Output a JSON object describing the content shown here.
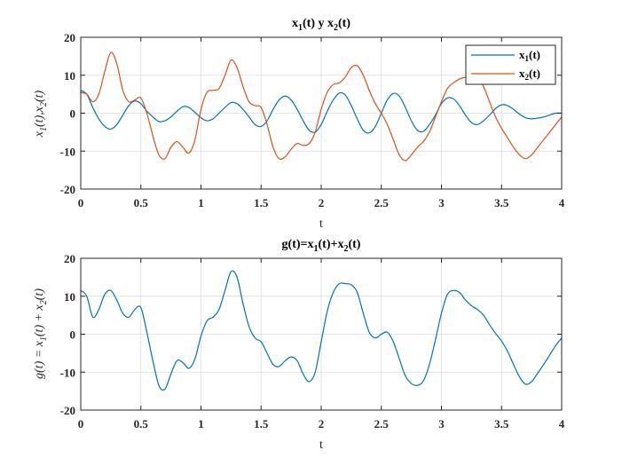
{
  "chart_data": [
    {
      "type": "line",
      "title": "x1(t) y x2(t)",
      "title_parts": {
        "a": "x",
        "a_sub": "1",
        "b": "(t) y x",
        "b_sub": "2",
        "c": "(t)"
      },
      "xlabel": "t",
      "ylabel": "x1(t),x2(t)",
      "ylabel_parts": {
        "a": "x",
        "a_sub": "1",
        "b": "(t),x",
        "b_sub": "2",
        "c": "(t)"
      },
      "xlim": [
        0,
        4
      ],
      "ylim": [
        -20,
        20
      ],
      "xticks": [
        0,
        0.5,
        1,
        1.5,
        2,
        2.5,
        3,
        3.5,
        4
      ],
      "xtick_labels": [
        "0",
        "0.5",
        "1",
        "1.5",
        "2",
        "2.5",
        "3",
        "3.5",
        "4"
      ],
      "yticks": [
        -20,
        -10,
        0,
        10,
        20
      ],
      "ytick_labels": [
        "-20",
        "-10",
        "0",
        "10",
        "20"
      ],
      "grid": true,
      "legend_position": "top-right",
      "series": [
        {
          "name": "x1(t)",
          "name_parts": {
            "a": "x",
            "a_sub": "1",
            "b": "(t)"
          },
          "color": "#0072BD",
          "x": [
            0,
            0.05,
            0.1,
            0.15,
            0.2,
            0.25,
            0.3,
            0.35,
            0.4,
            0.45,
            0.5,
            0.55,
            0.6,
            0.65,
            0.7,
            0.75,
            0.8,
            0.85,
            0.9,
            0.95,
            1.0,
            1.05,
            1.1,
            1.15,
            1.2,
            1.25,
            1.3,
            1.35,
            1.4,
            1.45,
            1.5,
            1.55,
            1.6,
            1.65,
            1.7,
            1.75,
            1.8,
            1.85,
            1.9,
            1.95,
            2.0,
            2.05,
            2.1,
            2.15,
            2.2,
            2.25,
            2.3,
            2.35,
            2.4,
            2.45,
            2.5,
            2.55,
            2.6,
            2.65,
            2.7,
            2.75,
            2.8,
            2.85,
            2.9,
            2.95,
            3.0,
            3.05,
            3.1,
            3.15,
            3.2,
            3.25,
            3.3,
            3.35,
            3.4,
            3.45,
            3.5,
            3.55,
            3.6,
            3.65,
            3.7,
            3.75,
            3.8,
            3.85,
            3.9,
            3.95,
            4.0
          ],
          "y": [
            6,
            5,
            1.5,
            -1.5,
            -3.5,
            -4.2,
            -3,
            -0.5,
            2,
            3.2,
            2.5,
            0.5,
            -1,
            -2.2,
            -2,
            -1,
            0.5,
            1.7,
            1.5,
            0.2,
            -1.2,
            -2,
            -1.5,
            0,
            1.5,
            2.8,
            2.5,
            1,
            -1,
            -3,
            -3.5,
            -2,
            1,
            3.5,
            4.5,
            3.5,
            1,
            -2,
            -4.5,
            -5,
            -3,
            0.5,
            3.5,
            5.3,
            4.8,
            2,
            -1.5,
            -4.5,
            -5.2,
            -3.5,
            0,
            3.5,
            5.2,
            4.5,
            1.5,
            -2,
            -4.5,
            -4.8,
            -3,
            -0.5,
            2.5,
            4,
            3.8,
            2,
            -0.5,
            -2.5,
            -3,
            -2,
            -0.5,
            1.2,
            2.2,
            2,
            1,
            -0.3,
            -1.2,
            -1.5,
            -1.3,
            -1,
            -0.5,
            0,
            0
          ]
        },
        {
          "name": "x2(t)",
          "name_parts": {
            "a": "x",
            "a_sub": "2",
            "b": "(t)"
          },
          "color": "#D95319",
          "x": [
            0,
            0.05,
            0.1,
            0.15,
            0.2,
            0.25,
            0.3,
            0.35,
            0.4,
            0.45,
            0.5,
            0.55,
            0.6,
            0.65,
            0.7,
            0.75,
            0.8,
            0.85,
            0.9,
            0.95,
            1.0,
            1.05,
            1.1,
            1.15,
            1.2,
            1.25,
            1.3,
            1.35,
            1.4,
            1.45,
            1.5,
            1.55,
            1.6,
            1.65,
            1.7,
            1.75,
            1.8,
            1.85,
            1.9,
            1.95,
            2.0,
            2.05,
            2.1,
            2.15,
            2.2,
            2.25,
            2.3,
            2.35,
            2.4,
            2.45,
            2.5,
            2.55,
            2.6,
            2.65,
            2.7,
            2.75,
            2.8,
            2.85,
            2.9,
            2.95,
            3.0,
            3.05,
            3.1,
            3.15,
            3.2,
            3.25,
            3.3,
            3.35,
            3.4,
            3.45,
            3.5,
            3.55,
            3.6,
            3.65,
            3.7,
            3.75,
            3.8,
            3.85,
            3.9,
            3.95,
            4.0
          ],
          "y": [
            5.5,
            5,
            3,
            5,
            11,
            16,
            13,
            6,
            3,
            3.5,
            4,
            0,
            -6,
            -11,
            -12,
            -9,
            -7.5,
            -9,
            -10.5,
            -7,
            1,
            5.5,
            6,
            6.5,
            10,
            14,
            12,
            7,
            3,
            2,
            1.5,
            -3,
            -9,
            -12,
            -11.5,
            -9.5,
            -8,
            -8.5,
            -8,
            -5,
            1,
            5.5,
            7.5,
            8,
            9.5,
            12,
            12.5,
            10,
            6,
            2.5,
            0,
            -3,
            -7,
            -11,
            -12.5,
            -11,
            -9,
            -7.5,
            -5,
            -1,
            3,
            6.5,
            8,
            9,
            9.5,
            10,
            9.5,
            7,
            3,
            -1,
            -4,
            -6.5,
            -9,
            -11,
            -12,
            -11,
            -9,
            -7,
            -5,
            -3,
            -1
          ]
        }
      ]
    },
    {
      "type": "line",
      "title": "g(t)=x1(t)+x2(t)",
      "title_parts": {
        "a": "g(t)=x",
        "a_sub": "1",
        "b": "(t)+x",
        "b_sub": "2",
        "c": "(t)"
      },
      "xlabel": "t",
      "ylabel": "g(t) = x1(t) + x2(t)",
      "ylabel_parts": {
        "a": "g(t) = x",
        "a_sub": "1",
        "b": "(t) + x",
        "b_sub": "2",
        "c": "(t)"
      },
      "xlim": [
        0,
        4
      ],
      "ylim": [
        -20,
        20
      ],
      "xticks": [
        0,
        0.5,
        1,
        1.5,
        2,
        2.5,
        3,
        3.5,
        4
      ],
      "xtick_labels": [
        "0",
        "0.5",
        "1",
        "1.5",
        "2",
        "2.5",
        "3",
        "3.5",
        "4"
      ],
      "yticks": [
        -20,
        -10,
        0,
        10,
        20
      ],
      "ytick_labels": [
        "-20",
        "-10",
        "0",
        "10",
        "20"
      ],
      "grid": true,
      "series": [
        {
          "name": "g(t)",
          "color": "#0072BD",
          "x": [
            0,
            0.05,
            0.1,
            0.15,
            0.2,
            0.25,
            0.3,
            0.35,
            0.4,
            0.45,
            0.5,
            0.55,
            0.6,
            0.65,
            0.7,
            0.75,
            0.8,
            0.85,
            0.9,
            0.95,
            1.0,
            1.05,
            1.1,
            1.15,
            1.2,
            1.25,
            1.3,
            1.35,
            1.4,
            1.45,
            1.5,
            1.55,
            1.6,
            1.65,
            1.7,
            1.75,
            1.8,
            1.85,
            1.9,
            1.95,
            2.0,
            2.05,
            2.1,
            2.15,
            2.2,
            2.25,
            2.3,
            2.35,
            2.4,
            2.45,
            2.5,
            2.55,
            2.6,
            2.65,
            2.7,
            2.75,
            2.8,
            2.85,
            2.9,
            2.95,
            3.0,
            3.05,
            3.1,
            3.15,
            3.2,
            3.25,
            3.3,
            3.35,
            3.4,
            3.45,
            3.5,
            3.55,
            3.6,
            3.65,
            3.7,
            3.75,
            3.8,
            3.85,
            3.9,
            3.95,
            4.0
          ],
          "y": [
            11.5,
            10,
            4.5,
            6.5,
            10.5,
            11.5,
            9,
            5.5,
            4.5,
            6.5,
            7,
            0.5,
            -7,
            -13.5,
            -14.5,
            -10.5,
            -7,
            -7.5,
            -9,
            -6.5,
            -0.5,
            3.5,
            4.5,
            6.5,
            11.5,
            16.5,
            15,
            8,
            2,
            -1,
            -2,
            -5,
            -8,
            -8.5,
            -7,
            -6,
            -7,
            -10.5,
            -12.5,
            -10,
            -2,
            6,
            11,
            13.3,
            13.3,
            13,
            11,
            5.5,
            0.5,
            -1,
            0,
            0.5,
            -2,
            -6.5,
            -11,
            -13,
            -13.5,
            -12.3,
            -8,
            -1.5,
            5.5,
            10.5,
            11.5,
            11,
            9,
            7.5,
            6.5,
            5,
            2.5,
            0.2,
            -1.8,
            -4.5,
            -8,
            -11.3,
            -13.2,
            -12.5,
            -10.3,
            -8,
            -5.5,
            -3,
            -1
          ]
        }
      ]
    }
  ]
}
